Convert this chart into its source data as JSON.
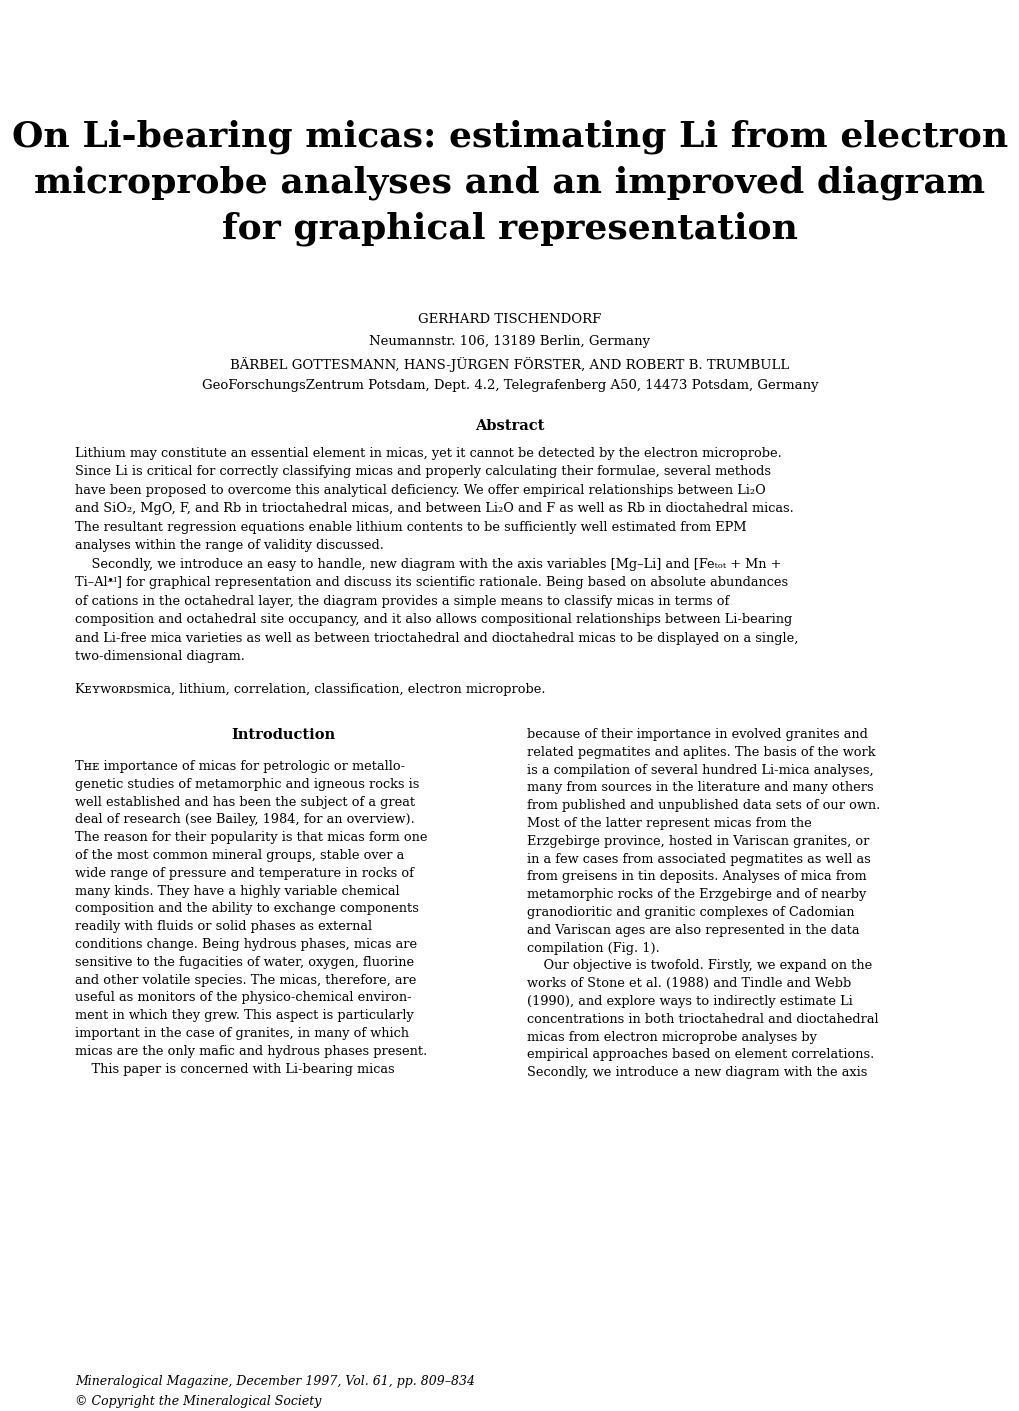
{
  "bg_color": "#ffffff",
  "title_line1": "On Li-bearing micas: estimating Li from electron",
  "title_line2": "microprobe analyses and an improved diagram",
  "title_line3": "for graphical representation",
  "author1": "Gerhard Tischendorf",
  "author1_affil": "Neumannstr. 106, 13189 Berlin, Germany",
  "author2": "Bärbel Gottesmann, Hans-Jürgen Förster, and Robert B. Trumbull",
  "author2_affil": "GeoForschungsZentrum Potsdam, Dept. 4.2, Telegrafenberg A50, 14473 Potsdam, Germany",
  "abstract_title": "Abstract",
  "keywords_text": "mica, lithium, correlation, classification, electron microprobe.",
  "intro_title": "Introduction",
  "abstract_lines": [
    "Lithium may constitute an essential element in micas, yet it cannot be detected by the electron microprobe.",
    "Since Li is critical for correctly classifying micas and properly calculating their formulae, several methods",
    "have been proposed to overcome this analytical deficiency. We offer empirical relationships between Li₂O",
    "and SiO₂, MgO, F, and Rb in trioctahedral micas, and between Li₂O and F as well as Rb in dioctahedral micas.",
    "The resultant regression equations enable lithium contents to be sufficiently well estimated from EPM",
    "analyses within the range of validity discussed.",
    "    Secondly, we introduce an easy to handle, new diagram with the axis variables [Mg–Li] and [Feₜₒₜ + Mn +",
    "Ti–Alᵜᴵ] for graphical representation and discuss its scientific rationale. Being based on absolute abundances",
    "of cations in the octahedral layer, the diagram provides a simple means to classify micas in terms of",
    "composition and octahedral site occupancy, and it also allows compositional relationships between Li-bearing",
    "and Li-free mica varieties as well as between trioctahedral and dioctahedral micas to be displayed on a single,",
    "two-dimensional diagram."
  ],
  "col1_lines": [
    "Tʜᴇ importance of micas for petrologic or metallo-",
    "genetic studies of metamorphic and igneous rocks is",
    "well established and has been the subject of a great",
    "deal of research (see Bailey, 1984, for an overview).",
    "The reason for their popularity is that micas form one",
    "of the most common mineral groups, stable over a",
    "wide range of pressure and temperature in rocks of",
    "many kinds. They have a highly variable chemical",
    "composition and the ability to exchange components",
    "readily with fluids or solid phases as external",
    "conditions change. Being hydrous phases, micas are",
    "sensitive to the fugacities of water, oxygen, fluorine",
    "and other volatile species. The micas, therefore, are",
    "useful as monitors of the physico-chemical environ-",
    "ment in which they grew. This aspect is particularly",
    "important in the case of granites, in many of which",
    "micas are the only mafic and hydrous phases present.",
    "    This paper is concerned with Li-bearing micas"
  ],
  "col2_lines": [
    "because of their importance in evolved granites and",
    "related pegmatites and aplites. The basis of the work",
    "is a compilation of several hundred Li-mica analyses,",
    "many from sources in the literature and many others",
    "from published and unpublished data sets of our own.",
    "Most of the latter represent micas from the",
    "Erzgebirge province, hosted in Variscan granites, or",
    "in a few cases from associated pegmatites as well as",
    "from greisens in tin deposits. Analyses of mica from",
    "metamorphic rocks of the Erzgebirge and of nearby",
    "granodioritic and granitic complexes of Cadomian",
    "and Variscan ages are also represented in the data",
    "compilation (Fig. 1).",
    "    Our objective is twofold. Firstly, we expand on the",
    "works of Stone et al. (1988) and Tindle and Webb",
    "(1990), and explore ways to indirectly estimate Li",
    "concentrations in both trioctahedral and dioctahedral",
    "micas from electron microprobe analyses by",
    "empirical approaches based on element correlations.",
    "Secondly, we introduce a new diagram with the axis"
  ],
  "footer_line1": "Mineralogical Magazine, December 1997, Vol. 61, pp. 809–834",
  "footer_line2": "© Copyright the Mineralogical Society"
}
